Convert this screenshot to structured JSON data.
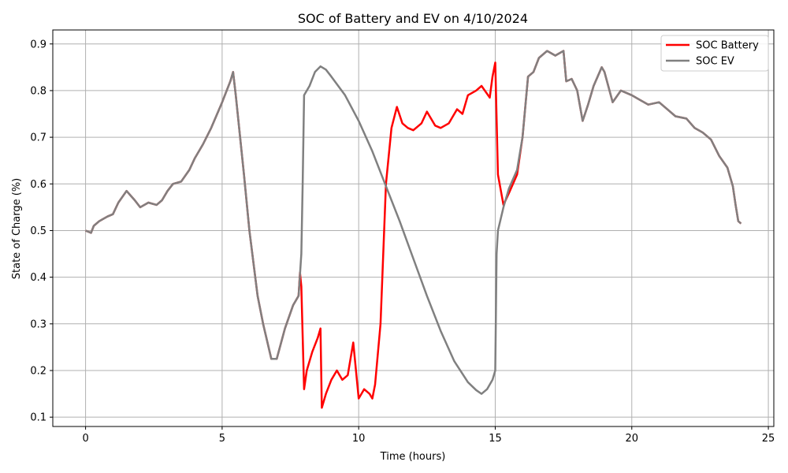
{
  "chart_data": {
    "type": "line",
    "title": "SOC of Battery and EV on 4/10/2024",
    "xlabel": "Time (hours)",
    "ylabel": "State of Charge (%)",
    "xlim": [
      -1.2,
      25.2
    ],
    "ylim": [
      0.08,
      0.93
    ],
    "xticks": [
      0,
      5,
      10,
      15,
      20,
      25
    ],
    "yticks": [
      0.1,
      0.2,
      0.3,
      0.4,
      0.5,
      0.6,
      0.7,
      0.8,
      0.9
    ],
    "grid": true,
    "legend_position": "top-right",
    "series": [
      {
        "name": "SOC Battery",
        "color": "#ff0000",
        "x": [
          0,
          0.2,
          0.3,
          0.5,
          0.8,
          1.0,
          1.2,
          1.5,
          1.8,
          2.0,
          2.3,
          2.6,
          2.8,
          3.0,
          3.2,
          3.5,
          3.8,
          4.0,
          4.3,
          4.6,
          5.0,
          5.3,
          5.4,
          5.5,
          5.8,
          6.0,
          6.3,
          6.5,
          6.8,
          7.0,
          7.3,
          7.6,
          7.8,
          7.85,
          7.9,
          8.0,
          8.1,
          8.3,
          8.5,
          8.6,
          8.65,
          8.8,
          9.0,
          9.2,
          9.4,
          9.6,
          9.8,
          10.0,
          10.2,
          10.4,
          10.5,
          10.6,
          10.8,
          11.0,
          11.2,
          11.4,
          11.6,
          11.8,
          12.0,
          12.3,
          12.5,
          12.8,
          13.0,
          13.3,
          13.6,
          13.8,
          14.0,
          14.3,
          14.5,
          14.8,
          14.9,
          15.0,
          15.1,
          15.3,
          15.5,
          15.8,
          16.0,
          16.2,
          16.4,
          16.6,
          16.9,
          17.2,
          17.5,
          17.6,
          17.8,
          18.0,
          18.2,
          18.4,
          18.6,
          18.9,
          19.0,
          19.3,
          19.6,
          20.0,
          20.3,
          20.6,
          21.0,
          21.3,
          21.6,
          22.0,
          22.3,
          22.6,
          22.9,
          23.2,
          23.5,
          23.7,
          23.8,
          23.9,
          24.0
        ],
        "y": [
          0.5,
          0.495,
          0.51,
          0.52,
          0.53,
          0.535,
          0.56,
          0.585,
          0.565,
          0.55,
          0.56,
          0.555,
          0.565,
          0.585,
          0.6,
          0.605,
          0.63,
          0.655,
          0.685,
          0.72,
          0.775,
          0.82,
          0.84,
          0.79,
          0.62,
          0.5,
          0.36,
          0.3,
          0.225,
          0.225,
          0.29,
          0.34,
          0.36,
          0.41,
          0.38,
          0.16,
          0.2,
          0.24,
          0.27,
          0.29,
          0.12,
          0.15,
          0.18,
          0.2,
          0.18,
          0.19,
          0.26,
          0.14,
          0.16,
          0.15,
          0.14,
          0.17,
          0.3,
          0.6,
          0.72,
          0.765,
          0.73,
          0.72,
          0.715,
          0.73,
          0.755,
          0.725,
          0.72,
          0.73,
          0.76,
          0.75,
          0.79,
          0.8,
          0.81,
          0.785,
          0.83,
          0.86,
          0.62,
          0.555,
          0.58,
          0.62,
          0.7,
          0.83,
          0.84,
          0.87,
          0.885,
          0.875,
          0.885,
          0.82,
          0.825,
          0.8,
          0.735,
          0.77,
          0.81,
          0.85,
          0.84,
          0.775,
          0.8,
          0.79,
          0.78,
          0.77,
          0.775,
          0.76,
          0.745,
          0.74,
          0.72,
          0.71,
          0.695,
          0.66,
          0.635,
          0.595,
          0.555,
          0.52,
          0.515
        ]
      },
      {
        "name": "SOC EV",
        "color": "#808080",
        "x": [
          0,
          0.2,
          0.3,
          0.5,
          0.8,
          1.0,
          1.2,
          1.5,
          1.8,
          2.0,
          2.3,
          2.6,
          2.8,
          3.0,
          3.2,
          3.5,
          3.8,
          4.0,
          4.3,
          4.6,
          5.0,
          5.3,
          5.4,
          5.5,
          5.8,
          6.0,
          6.3,
          6.5,
          6.8,
          7.0,
          7.3,
          7.6,
          7.8,
          7.9,
          7.95,
          8.0,
          8.2,
          8.4,
          8.6,
          8.8,
          9.0,
          9.5,
          10.0,
          10.5,
          11.0,
          11.5,
          12.0,
          12.5,
          13.0,
          13.5,
          14.0,
          14.3,
          14.5,
          14.7,
          14.9,
          15.0,
          15.05,
          15.1,
          15.3,
          15.5,
          15.8,
          16.0,
          16.2,
          16.4,
          16.6,
          16.9,
          17.2,
          17.5,
          17.6,
          17.8,
          18.0,
          18.2,
          18.4,
          18.6,
          18.9,
          19.0,
          19.3,
          19.6,
          20.0,
          20.3,
          20.6,
          21.0,
          21.3,
          21.6,
          22.0,
          22.3,
          22.6,
          22.9,
          23.2,
          23.5,
          23.7,
          23.8,
          23.9,
          24.0
        ],
        "y": [
          0.5,
          0.495,
          0.51,
          0.52,
          0.53,
          0.535,
          0.56,
          0.585,
          0.565,
          0.55,
          0.56,
          0.555,
          0.565,
          0.585,
          0.6,
          0.605,
          0.63,
          0.655,
          0.685,
          0.72,
          0.775,
          0.82,
          0.84,
          0.79,
          0.62,
          0.5,
          0.36,
          0.3,
          0.225,
          0.225,
          0.29,
          0.34,
          0.36,
          0.45,
          0.6,
          0.79,
          0.81,
          0.84,
          0.852,
          0.845,
          0.83,
          0.79,
          0.735,
          0.67,
          0.595,
          0.52,
          0.44,
          0.36,
          0.285,
          0.22,
          0.175,
          0.158,
          0.15,
          0.16,
          0.18,
          0.2,
          0.45,
          0.5,
          0.55,
          0.59,
          0.63,
          0.7,
          0.83,
          0.84,
          0.87,
          0.885,
          0.875,
          0.885,
          0.82,
          0.825,
          0.8,
          0.735,
          0.77,
          0.81,
          0.85,
          0.84,
          0.775,
          0.8,
          0.79,
          0.78,
          0.77,
          0.775,
          0.76,
          0.745,
          0.74,
          0.72,
          0.71,
          0.695,
          0.66,
          0.635,
          0.595,
          0.555,
          0.52,
          0.515
        ]
      }
    ]
  }
}
